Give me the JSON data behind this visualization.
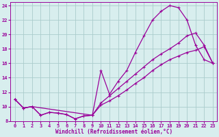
{
  "bg_color": "#d8eeee",
  "grid_color": "#aacccc",
  "line_color": "#990099",
  "xlabel": "Windchill (Refroidissement éolien,°C)",
  "xlim": [
    -0.5,
    23.5
  ],
  "ylim": [
    8,
    24.5
  ],
  "yticks": [
    8,
    10,
    12,
    14,
    16,
    18,
    20,
    22,
    24
  ],
  "xticks": [
    0,
    1,
    2,
    3,
    4,
    5,
    6,
    7,
    8,
    9,
    10,
    11,
    12,
    13,
    14,
    15,
    16,
    17,
    18,
    19,
    20,
    21,
    22,
    23
  ],
  "line1_x": [
    0,
    1,
    2,
    3,
    4,
    5,
    6,
    7,
    8,
    9,
    10,
    11,
    12,
    13,
    14,
    15,
    16,
    17,
    18,
    19,
    20,
    21,
    22,
    23
  ],
  "line1_y": [
    11.0,
    9.8,
    10.0,
    8.8,
    9.2,
    9.1,
    8.9,
    8.3,
    8.7,
    8.8,
    15.0,
    11.7,
    13.5,
    15.0,
    17.5,
    19.8,
    22.0,
    23.2,
    24.0,
    23.7,
    22.0,
    18.5,
    16.5,
    16.0
  ],
  "line2_x": [
    0,
    1,
    2,
    9,
    10,
    11,
    12,
    13,
    14,
    15,
    16,
    17,
    18,
    19,
    20,
    21,
    22,
    23
  ],
  "line2_y": [
    11.0,
    9.8,
    10.0,
    8.8,
    10.5,
    11.5,
    12.5,
    13.5,
    14.5,
    15.5,
    16.5,
    17.3,
    18.0,
    18.8,
    19.8,
    20.2,
    18.5,
    16.0
  ],
  "line3_x": [
    0,
    1,
    2,
    3,
    4,
    5,
    6,
    7,
    8,
    9,
    10,
    11,
    12,
    13,
    14,
    15,
    16,
    17,
    18,
    19,
    20,
    21,
    22,
    23
  ],
  "line3_y": [
    11.0,
    9.8,
    10.0,
    8.8,
    9.2,
    9.1,
    8.9,
    8.3,
    8.7,
    8.8,
    10.2,
    10.8,
    11.5,
    12.3,
    13.2,
    14.0,
    15.0,
    15.8,
    16.5,
    17.0,
    17.5,
    17.8,
    18.3,
    16.0
  ]
}
